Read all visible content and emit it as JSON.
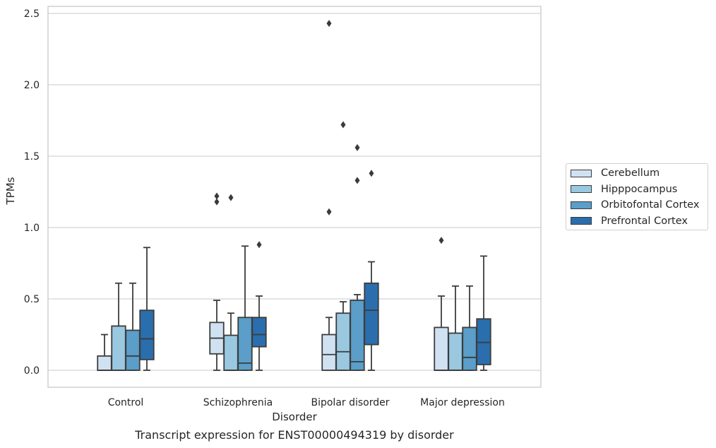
{
  "chart_data": {
    "type": "box",
    "xlabel": "Disorder",
    "ylabel": "TPMs",
    "caption": "Transcript expression for ENST00000494319 by disorder",
    "ylim": [
      -0.12,
      2.56
    ],
    "yticks": [
      "0.0",
      "0.5",
      "1.0",
      "1.5",
      "2.0",
      "2.5"
    ],
    "grid": true,
    "legend_position": "right",
    "categories": [
      "Control",
      "Schizophrenia",
      "Bipolar disorder",
      "Major depression"
    ],
    "series": [
      {
        "name": "Cerebellum",
        "color": "#d0e2f2",
        "boxes": [
          {
            "q1": 0.0,
            "median": 0.0,
            "q3": 0.1,
            "whisker_low": 0.0,
            "whisker_high": 0.25,
            "outliers": []
          },
          {
            "q1": 0.115,
            "median": 0.225,
            "q3": 0.335,
            "whisker_low": 0.0,
            "whisker_high": 0.49,
            "outliers": [
              1.18,
              1.22
            ]
          },
          {
            "q1": 0.0,
            "median": 0.11,
            "q3": 0.25,
            "whisker_low": 0.0,
            "whisker_high": 0.37,
            "outliers": [
              1.11,
              2.43
            ]
          },
          {
            "q1": 0.0,
            "median": 0.0,
            "q3": 0.3,
            "whisker_low": 0.0,
            "whisker_high": 0.52,
            "outliers": [
              0.91
            ]
          }
        ]
      },
      {
        "name": "Hipppocampus",
        "color": "#9ac8e0",
        "boxes": [
          {
            "q1": 0.0,
            "median": 0.0,
            "q3": 0.31,
            "whisker_low": 0.0,
            "whisker_high": 0.61,
            "outliers": []
          },
          {
            "q1": 0.0,
            "median": 0.0,
            "q3": 0.245,
            "whisker_low": 0.0,
            "whisker_high": 0.4,
            "outliers": [
              1.21
            ]
          },
          {
            "q1": 0.0,
            "median": 0.13,
            "q3": 0.4,
            "whisker_low": 0.0,
            "whisker_high": 0.48,
            "outliers": [
              1.72
            ]
          },
          {
            "q1": 0.0,
            "median": 0.0,
            "q3": 0.26,
            "whisker_low": 0.0,
            "whisker_high": 0.59,
            "outliers": []
          }
        ]
      },
      {
        "name": "Orbitofontal Cortex",
        "color": "#5a9ec9",
        "boxes": [
          {
            "q1": 0.0,
            "median": 0.1,
            "q3": 0.28,
            "whisker_low": 0.0,
            "whisker_high": 0.61,
            "outliers": []
          },
          {
            "q1": 0.0,
            "median": 0.05,
            "q3": 0.37,
            "whisker_low": 0.0,
            "whisker_high": 0.87,
            "outliers": []
          },
          {
            "q1": 0.0,
            "median": 0.06,
            "q3": 0.49,
            "whisker_low": 0.0,
            "whisker_high": 0.53,
            "outliers": [
              1.33,
              1.56
            ]
          },
          {
            "q1": 0.0,
            "median": 0.09,
            "q3": 0.3,
            "whisker_low": 0.0,
            "whisker_high": 0.59,
            "outliers": []
          }
        ]
      },
      {
        "name": "Prefrontal Cortex",
        "color": "#2a6ead",
        "boxes": [
          {
            "q1": 0.075,
            "median": 0.22,
            "q3": 0.42,
            "whisker_low": 0.0,
            "whisker_high": 0.86,
            "outliers": []
          },
          {
            "q1": 0.165,
            "median": 0.25,
            "q3": 0.37,
            "whisker_low": 0.0,
            "whisker_high": 0.52,
            "outliers": [
              0.88
            ]
          },
          {
            "q1": 0.18,
            "median": 0.42,
            "q3": 0.61,
            "whisker_low": 0.0,
            "whisker_high": 0.76,
            "outliers": [
              1.38
            ]
          },
          {
            "q1": 0.04,
            "median": 0.195,
            "q3": 0.36,
            "whisker_low": 0.0,
            "whisker_high": 0.8,
            "outliers": []
          }
        ]
      }
    ]
  }
}
